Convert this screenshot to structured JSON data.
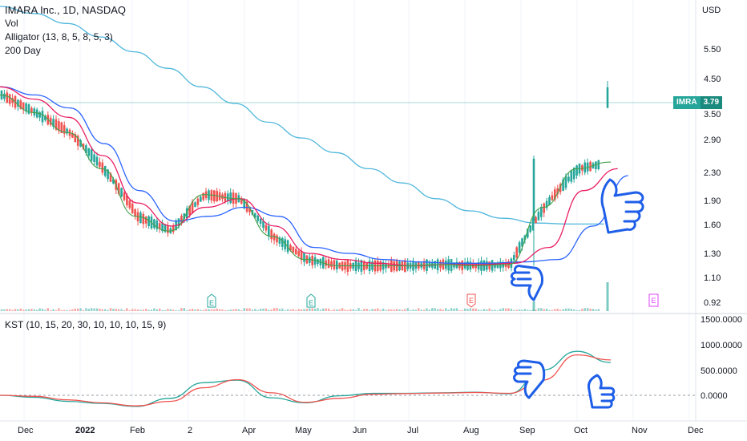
{
  "legend": {
    "title": "IMARA Inc., 1D, NASDAQ",
    "vol": "Vol",
    "alligator": "Alligator (13, 8, 5, 8, 5, 3)",
    "ma200": "200 Day",
    "kst": "KST (10, 15, 20, 30, 10, 10, 10, 15, 9)"
  },
  "price_axis": {
    "currency": "USD",
    "ticks": [
      "5.50",
      "4.50",
      "3.50",
      "2.90",
      "2.30",
      "1.90",
      "1.60",
      "1.30",
      "1.10",
      "0.92"
    ]
  },
  "kst_axis": {
    "ticks": [
      "1500.0000",
      "1000.0000",
      "500.0000",
      "0.0000"
    ]
  },
  "symbol_badge": {
    "ticker": "IMRA",
    "price": "3.79"
  },
  "dates": [
    "Dec",
    "2022",
    "Feb",
    "2",
    "Apr",
    "May",
    "Jun",
    "Jul",
    "Aug",
    "Sep",
    "Oct",
    "Nov",
    "Dec"
  ],
  "earnings_markers": [
    "E",
    "E",
    "E",
    "E"
  ],
  "colors": {
    "up": "#26a69a",
    "down": "#ef5350",
    "ma200": "#4fb7dd",
    "jaw": "#2962ff",
    "teeth": "#e91e63",
    "lips": "#43a047",
    "kst": "#26a69a",
    "signal": "#ef5350",
    "thumb": "#1e5ee8",
    "accent": "#26a69a"
  },
  "icons": [
    "thumbs-up-icon",
    "thumbs-down-icon"
  ],
  "chart_data": {
    "type": "candlestick",
    "price_scale": "log",
    "ylim": [
      0.85,
      6.5
    ],
    "last_price": 3.79,
    "ma200": [
      6.5,
      6.2,
      5.8,
      5.3,
      4.8,
      4.3,
      3.8,
      3.4,
      3.0,
      2.7,
      2.45,
      2.2,
      2.0,
      1.8,
      1.66,
      1.58,
      1.53,
      1.52,
      1.52
    ],
    "alligator_jaw": [
      3.8,
      3.6,
      3.3,
      2.6,
      1.9,
      1.55,
      1.6,
      1.7,
      1.6,
      1.3,
      1.25,
      1.2,
      1.18,
      1.17,
      1.17,
      1.18,
      1.2,
      1.5,
      2.1
    ],
    "alligator_teeth": [
      3.8,
      3.5,
      3.1,
      2.4,
      1.75,
      1.5,
      1.7,
      1.8,
      1.5,
      1.25,
      1.2,
      1.17,
      1.15,
      1.16,
      1.16,
      1.17,
      1.3,
      1.9,
      2.2
    ],
    "alligator_lips": [
      3.6,
      3.2,
      2.8,
      2.2,
      1.6,
      1.45,
      1.85,
      1.8,
      1.4,
      1.2,
      1.15,
      1.15,
      1.15,
      1.16,
      1.15,
      1.16,
      1.7,
      2.2,
      2.3
    ],
    "kst": [
      0,
      -40,
      -120,
      -160,
      -220,
      -60,
      250,
      300,
      -50,
      -150,
      -10,
      40,
      40,
      50,
      60,
      30,
      500,
      870,
      650
    ],
    "kst_signal": [
      0,
      -20,
      -90,
      -150,
      -210,
      -120,
      150,
      310,
      50,
      -140,
      -60,
      20,
      35,
      45,
      55,
      40,
      300,
      800,
      700
    ]
  }
}
